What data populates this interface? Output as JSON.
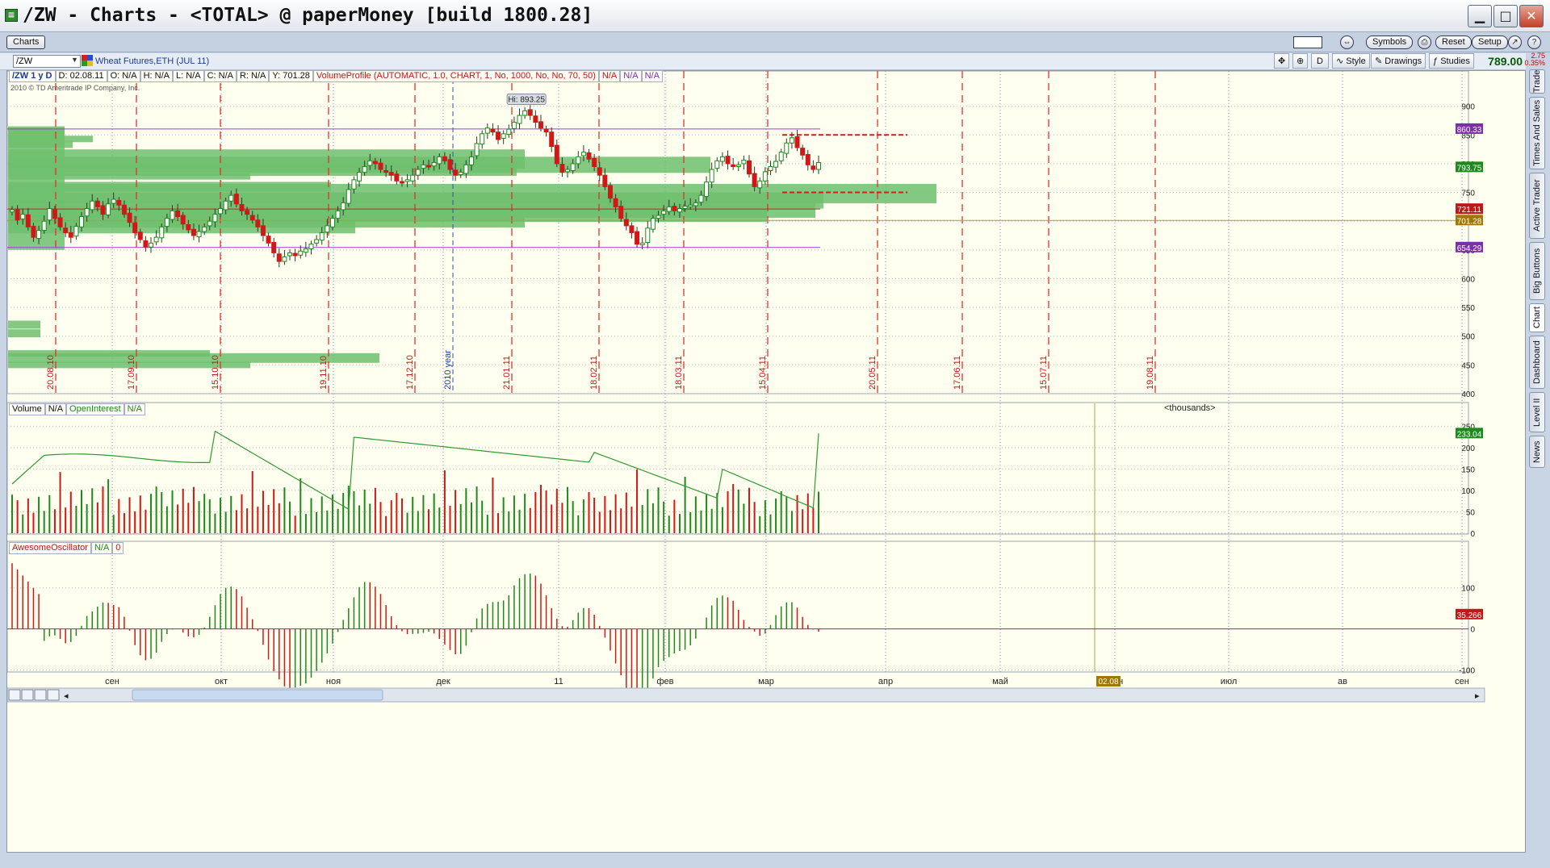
{
  "window": {
    "title": "/ZW - Charts - <TOTAL> @ paperMoney [build 1800.28]"
  },
  "chartsbar": {
    "tab": "Charts",
    "symbols": "Symbols",
    "reset": "Reset",
    "setup": "Setup"
  },
  "toolbar": {
    "symbol": "/ZW",
    "symbol_desc": "Wheat Futures,ETH (JUL 11)",
    "period": "D",
    "style": "Style",
    "drawings": "Drawings",
    "studies": "Studies",
    "last_price": "789.00",
    "change": "2.75",
    "change_pct": "0.35%"
  },
  "header": {
    "series": "/ZW 1 y D",
    "date": "D: 02.08.11",
    "open": "O: N/A",
    "high": "H: N/A",
    "low": "L: N/A",
    "close": "C: N/A",
    "range": "R: N/A",
    "ycoord": "Y: 701.28",
    "study": "VolumeProfile (AUTOMATIC, 1.0, CHART, 1, No, 1000, No, No, 70, 50)",
    "na1": "N/A",
    "na2": "N/A",
    "na3": "N/A",
    "copyright": "2010 © TD Ameritrade IP Company, Inc."
  },
  "sidetabs": [
    "Trade",
    "Times And Sales",
    "Active Trader",
    "Big Buttons",
    "Chart",
    "Dashboard",
    "Level II",
    "News"
  ],
  "chart_data": [
    {
      "type": "line",
      "title": "/ZW 1 y D",
      "ylim": [
        400,
        950
      ],
      "yticks": [
        400,
        450,
        500,
        550,
        600,
        650,
        700,
        750,
        800,
        850,
        900
      ],
      "hi_label": "Hi: 893.25",
      "price_labels": [
        {
          "text": "860.33",
          "value": 860.33,
          "color": "#7b2fa8"
        },
        {
          "text": "793.75",
          "value": 793.75,
          "color": "#1e8a1e"
        },
        {
          "text": "721.11",
          "value": 721.11,
          "color": "#c01818"
        },
        {
          "text": "701.28",
          "value": 701.28,
          "color": "#a07800"
        },
        {
          "text": "654.29",
          "value": 654.29,
          "color": "#7b2fa8"
        }
      ],
      "level_lines": [
        860.33,
        721.11,
        654.29,
        701.28
      ],
      "expiry_dates": [
        "20.08.10",
        "17.09.10",
        "15.10.10",
        "19.11.10",
        "17.12.10",
        "21.01.11",
        "18.02.11",
        "18.03.11",
        "15.04.11",
        "20.05.11",
        "17.06.11",
        "15.07.11",
        "19.08.11"
      ],
      "year_marker": "2010 year",
      "close_series": [
        720,
        702,
        712,
        690,
        672,
        684,
        700,
        722,
        705,
        690,
        680,
        672,
        691,
        708,
        722,
        735,
        725,
        712,
        730,
        738,
        728,
        712,
        698,
        680,
        668,
        655,
        662,
        672,
        690,
        705,
        718,
        708,
        695,
        685,
        675,
        682,
        690,
        700,
        712,
        722,
        735,
        745,
        730,
        718,
        712,
        702,
        690,
        675,
        662,
        645,
        630,
        638,
        645,
        640,
        648,
        652,
        660,
        668,
        680,
        692,
        705,
        718,
        732,
        755,
        772,
        785,
        795,
        805,
        800,
        790,
        785,
        780,
        770,
        768,
        772,
        780,
        790,
        798,
        795,
        802,
        812,
        805,
        790,
        780,
        785,
        798,
        812,
        835,
        852,
        862,
        855,
        842,
        852,
        860,
        872,
        884,
        892,
        884,
        872,
        862,
        855,
        830,
        800,
        785,
        790,
        800,
        812,
        820,
        808,
        795,
        780,
        760,
        740,
        725,
        705,
        692,
        680,
        660,
        662,
        688,
        705,
        710,
        718,
        725,
        718,
        722,
        726,
        728,
        732,
        745,
        768,
        790,
        805,
        812,
        800,
        795,
        798,
        806,
        782,
        760,
        770,
        786,
        795,
        804,
        820,
        836,
        845,
        828,
        815,
        798,
        790,
        802
      ],
      "volume_profile_label": "VolumeProfile"
    },
    {
      "type": "bar",
      "title": "Volume",
      "labels": [
        "Volume",
        "N/A",
        "OpenInterest",
        "N/A"
      ],
      "unit": "<thousands>",
      "ylim": [
        0,
        260
      ],
      "yticks": [
        0,
        50,
        100,
        150,
        200,
        250
      ],
      "last_label": "233.04"
    },
    {
      "type": "bar",
      "title": "AwesomeOscillator",
      "labels": [
        "AwesomeOscillator",
        "N/A",
        "0"
      ],
      "ylim": [
        -105,
        180
      ],
      "yticks": [
        -100,
        0,
        100
      ],
      "last_label": "35.266"
    }
  ],
  "xaxis": {
    "labels": [
      "сен",
      "окт",
      "ноя",
      "дек",
      "11",
      "фев",
      "мар",
      "апр",
      "май",
      "июн",
      "июл",
      "ав",
      "сен"
    ],
    "cursor_label": "02.08"
  }
}
